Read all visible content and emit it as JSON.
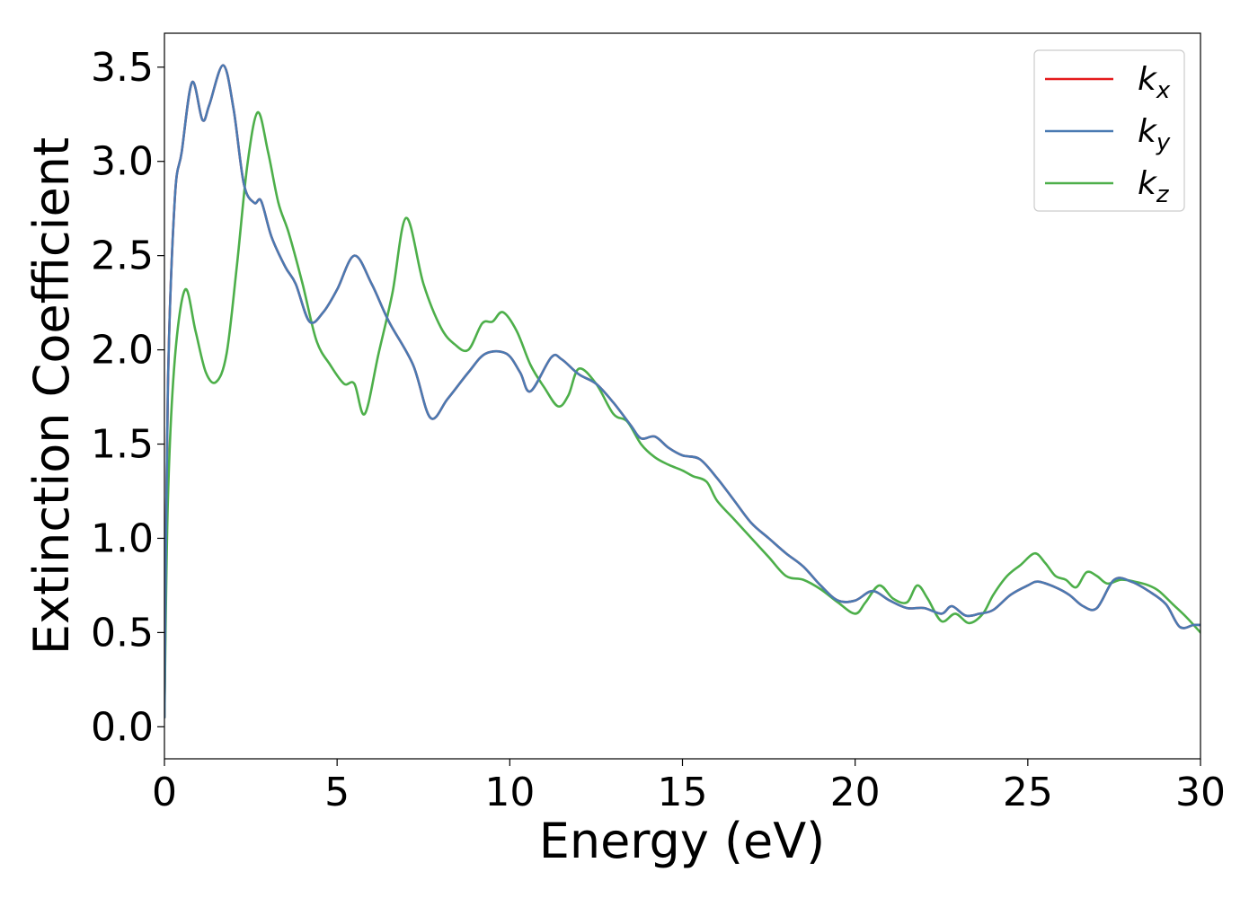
{
  "chart_data": {
    "type": "line",
    "xlabel": "Energy (eV)",
    "ylabel": "Extinction Coefficient",
    "xlim": [
      0,
      30
    ],
    "ylim": [
      -0.17,
      3.68
    ],
    "xticks": [
      0,
      5,
      10,
      15,
      20,
      25,
      30
    ],
    "xtick_labels": [
      "0",
      "5",
      "10",
      "15",
      "20",
      "25",
      "30"
    ],
    "yticks": [
      0.0,
      0.5,
      1.0,
      1.5,
      2.0,
      2.5,
      3.0,
      3.5
    ],
    "ytick_labels": [
      "0.0",
      "0.5",
      "1.0",
      "1.5",
      "2.0",
      "2.5",
      "3.0",
      "3.5"
    ],
    "grid": false,
    "legend_position": "top-right",
    "series": [
      {
        "name": "k_x",
        "label_base": "k",
        "label_sub": "x",
        "color": "#e41a1c",
        "x": [
          0,
          0.1,
          0.3,
          0.5,
          0.8,
          1.1,
          1.3,
          1.7,
          2.0,
          2.3,
          2.6,
          2.8,
          3.1,
          3.5,
          3.8,
          4.2,
          4.6,
          5.0,
          5.5,
          6.0,
          6.5,
          7.2,
          7.7,
          8.2,
          8.8,
          9.3,
          9.9,
          10.3,
          10.6,
          11.2,
          11.5,
          12.0,
          12.5,
          13.0,
          13.5,
          13.8,
          14.2,
          14.6,
          15.0,
          15.5,
          16.0,
          16.5,
          17.0,
          17.5,
          18.0,
          18.5,
          19.0,
          19.5,
          20.0,
          20.5,
          21.0,
          21.5,
          22.0,
          22.5,
          22.8,
          23.2,
          23.6,
          24.0,
          24.5,
          25.0,
          25.3,
          25.8,
          26.2,
          26.6,
          27.0,
          27.5,
          28.0,
          28.5,
          29.0,
          29.4,
          29.8,
          30.0
        ],
        "y": [
          0.05,
          1.8,
          2.8,
          3.05,
          3.42,
          3.22,
          3.3,
          3.51,
          3.28,
          2.88,
          2.78,
          2.79,
          2.6,
          2.44,
          2.35,
          2.15,
          2.2,
          2.32,
          2.5,
          2.35,
          2.15,
          1.92,
          1.64,
          1.74,
          1.88,
          1.98,
          1.98,
          1.88,
          1.78,
          1.96,
          1.95,
          1.87,
          1.82,
          1.72,
          1.6,
          1.53,
          1.54,
          1.48,
          1.44,
          1.42,
          1.32,
          1.2,
          1.08,
          1.0,
          0.92,
          0.85,
          0.75,
          0.67,
          0.67,
          0.72,
          0.67,
          0.63,
          0.63,
          0.6,
          0.64,
          0.59,
          0.6,
          0.62,
          0.7,
          0.75,
          0.77,
          0.74,
          0.7,
          0.64,
          0.63,
          0.78,
          0.77,
          0.72,
          0.65,
          0.53,
          0.54,
          0.54
        ]
      },
      {
        "name": "k_y",
        "label_base": "k",
        "label_sub": "y",
        "color": "#4a7ab2",
        "x": [
          0,
          0.1,
          0.3,
          0.5,
          0.8,
          1.1,
          1.3,
          1.7,
          2.0,
          2.3,
          2.6,
          2.8,
          3.1,
          3.5,
          3.8,
          4.2,
          4.6,
          5.0,
          5.5,
          6.0,
          6.5,
          7.2,
          7.7,
          8.2,
          8.8,
          9.3,
          9.9,
          10.3,
          10.6,
          11.2,
          11.5,
          12.0,
          12.5,
          13.0,
          13.5,
          13.8,
          14.2,
          14.6,
          15.0,
          15.5,
          16.0,
          16.5,
          17.0,
          17.5,
          18.0,
          18.5,
          19.0,
          19.5,
          20.0,
          20.5,
          21.0,
          21.5,
          22.0,
          22.5,
          22.8,
          23.2,
          23.6,
          24.0,
          24.5,
          25.0,
          25.3,
          25.8,
          26.2,
          26.6,
          27.0,
          27.5,
          28.0,
          28.5,
          29.0,
          29.4,
          29.8,
          30.0
        ],
        "y": [
          0.05,
          1.8,
          2.8,
          3.05,
          3.42,
          3.22,
          3.3,
          3.51,
          3.28,
          2.88,
          2.78,
          2.79,
          2.6,
          2.44,
          2.35,
          2.15,
          2.2,
          2.32,
          2.5,
          2.35,
          2.15,
          1.92,
          1.64,
          1.74,
          1.88,
          1.98,
          1.98,
          1.88,
          1.78,
          1.96,
          1.95,
          1.87,
          1.82,
          1.72,
          1.6,
          1.53,
          1.54,
          1.48,
          1.44,
          1.42,
          1.32,
          1.2,
          1.08,
          1.0,
          0.92,
          0.85,
          0.75,
          0.67,
          0.67,
          0.72,
          0.67,
          0.63,
          0.63,
          0.6,
          0.64,
          0.59,
          0.6,
          0.62,
          0.7,
          0.75,
          0.77,
          0.74,
          0.7,
          0.64,
          0.63,
          0.78,
          0.77,
          0.72,
          0.65,
          0.53,
          0.54,
          0.54
        ]
      },
      {
        "name": "k_z",
        "label_base": "k",
        "label_sub": "z",
        "color": "#4daf4a",
        "x": [
          0,
          0.1,
          0.3,
          0.6,
          0.9,
          1.2,
          1.5,
          1.8,
          2.1,
          2.4,
          2.7,
          3.0,
          3.3,
          3.6,
          4.0,
          4.4,
          4.8,
          5.2,
          5.5,
          5.8,
          6.2,
          6.6,
          7.0,
          7.5,
          8.0,
          8.4,
          8.8,
          9.2,
          9.5,
          9.8,
          10.2,
          10.6,
          11.0,
          11.4,
          11.7,
          12.0,
          12.5,
          13.0,
          13.4,
          13.8,
          14.2,
          14.6,
          15.0,
          15.3,
          15.7,
          16.0,
          16.5,
          17.0,
          17.5,
          18.0,
          18.5,
          19.0,
          19.5,
          20.0,
          20.3,
          20.7,
          21.1,
          21.5,
          21.8,
          22.1,
          22.5,
          22.9,
          23.3,
          23.7,
          24.0,
          24.4,
          24.8,
          25.2,
          25.5,
          25.8,
          26.1,
          26.4,
          26.7,
          27.0,
          27.3,
          27.7,
          28.1,
          28.5,
          28.8,
          29.2,
          29.6,
          30.0
        ],
        "y": [
          0.05,
          1.2,
          1.95,
          2.32,
          2.1,
          1.88,
          1.83,
          1.98,
          2.45,
          2.98,
          3.26,
          3.05,
          2.78,
          2.62,
          2.35,
          2.05,
          1.92,
          1.82,
          1.82,
          1.66,
          1.98,
          2.3,
          2.7,
          2.35,
          2.12,
          2.03,
          2.0,
          2.14,
          2.15,
          2.2,
          2.1,
          1.92,
          1.8,
          1.7,
          1.76,
          1.9,
          1.82,
          1.66,
          1.62,
          1.5,
          1.43,
          1.39,
          1.36,
          1.33,
          1.3,
          1.2,
          1.1,
          1.0,
          0.9,
          0.8,
          0.78,
          0.73,
          0.66,
          0.6,
          0.66,
          0.75,
          0.68,
          0.66,
          0.75,
          0.68,
          0.56,
          0.6,
          0.55,
          0.6,
          0.7,
          0.8,
          0.86,
          0.92,
          0.87,
          0.8,
          0.78,
          0.74,
          0.82,
          0.8,
          0.76,
          0.78,
          0.77,
          0.75,
          0.72,
          0.65,
          0.58,
          0.5
        ]
      }
    ]
  }
}
